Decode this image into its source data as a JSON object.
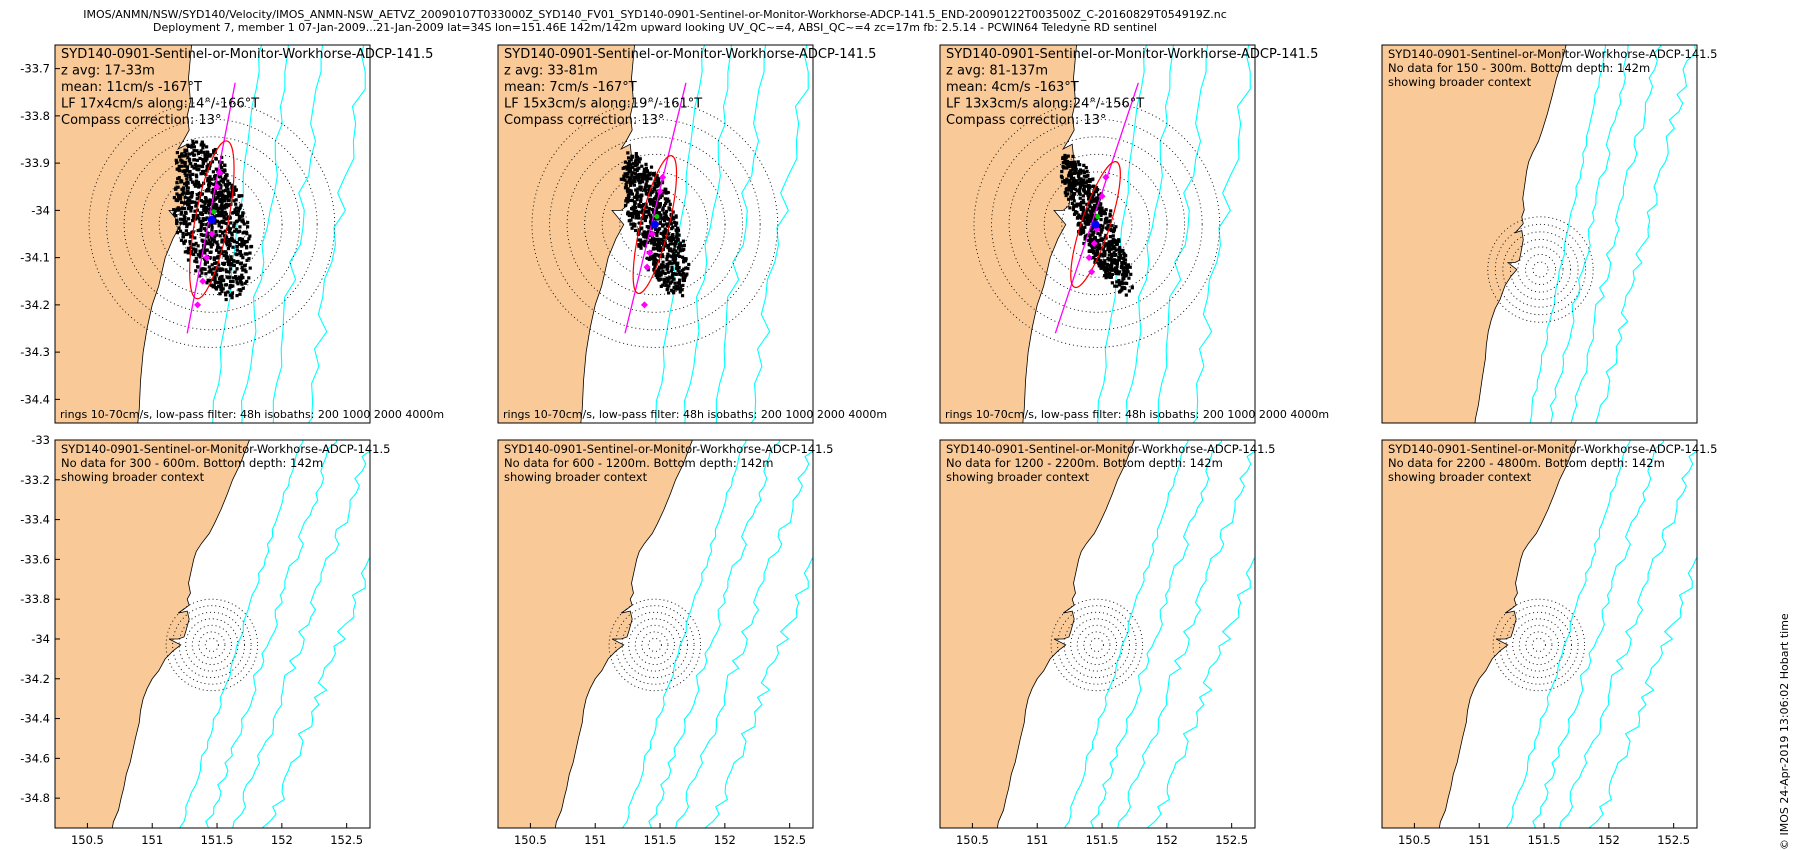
{
  "header": {
    "line1": "IMOS/ANMN/NSW/SYD140/Velocity/IMOS_ANMN-NSW_AETVZ_20090107T033000Z_SYD140_FV01_SYD140-0901-Sentinel-or-Monitor-Workhorse-ADCP-141.5_END-20090122T003500Z_C-20160829T054919Z.nc",
    "line2": "Deployment 7, member 1 07-Jan-2009...21-Jan-2009 lat=34S lon=151.46E 142m/142m upward looking UV_QC~=4, ABSI_QC~=4 zc=17m fb: 2.5.14 - PCWIN64 Teledyne RD sentinel"
  },
  "stamp": "© IMOS 24-Apr-2019 13:06:02 Hobart time",
  "colors": {
    "land": "#f9ca97",
    "isobath": "#00ffff",
    "major_axis": "#ff00ff",
    "ellipse": "#ff0000",
    "mean": "#0000ff",
    "scatter": "#000000"
  },
  "chart_data": [
    {
      "type": "scatter",
      "panel": "top-1",
      "xlim": [
        150.25,
        152.68
      ],
      "ylim": [
        -34.45,
        -33.65
      ],
      "yticks": [
        "-33.7",
        "-33.8",
        "-33.9",
        "-34",
        "-34.1",
        "-34.2",
        "-34.3",
        "-34.4"
      ],
      "xticks": [],
      "lines": [
        "SYD140-0901-Sentinel-or-Monitor-Workhorse-ADCP-141.5",
        "z avg: 17-33m",
        "mean: 11cm/s -167°T",
        "LF 17x4cm/s along:14°/-166°T",
        "Compass correction: 13°"
      ],
      "footer": "rings 10-70cm/s, low-pass filter: 48h isobaths: 200 1000 2000 4000m",
      "rings": 7,
      "scatter": {
        "cx": 151.46,
        "cy": -34.02,
        "rx": 0.26,
        "ry": 0.17,
        "tilt": -14,
        "n": 900
      },
      "major_axis": {
        "from": [
          151.27,
          -34.26
        ],
        "to": [
          151.64,
          -33.73
        ]
      },
      "ellipse_len": 0.17,
      "ellipse_wid": 0.035,
      "mean": [
        151.46,
        -34.02
      ],
      "lf_points": [
        [
          151.39,
          -34.15
        ],
        [
          151.42,
          -34.1
        ],
        [
          151.5,
          -33.95
        ],
        [
          151.52,
          -33.92
        ],
        [
          151.46,
          -34.05
        ],
        [
          151.35,
          -34.2
        ]
      ],
      "showing_context": false
    },
    {
      "type": "scatter",
      "panel": "top-2",
      "xlim": [
        150.25,
        152.68
      ],
      "ylim": [
        -34.45,
        -33.65
      ],
      "yticks": [],
      "xticks": [],
      "lines": [
        "SYD140-0901-Sentinel-or-Monitor-Workhorse-ADCP-141.5",
        "z avg: 33-81m",
        "mean: 7cm/s -167°T",
        "LF 15x3cm/s along:19°/-161°T",
        "Compass correction: 13°"
      ],
      "footer": "rings 10-70cm/s, low-pass filter: 48h isobaths: 200 1000 2000 4000m",
      "rings": 7,
      "scatter": {
        "cx": 151.46,
        "cy": -34.03,
        "rx": 0.17,
        "ry": 0.16,
        "tilt": -19,
        "n": 750
      },
      "major_axis": {
        "from": [
          151.23,
          -34.26
        ],
        "to": [
          151.7,
          -33.73
        ]
      },
      "ellipse_len": 0.15,
      "ellipse_wid": 0.03,
      "mean": [
        151.46,
        -34.03
      ],
      "lf_points": [
        [
          151.4,
          -34.12
        ],
        [
          151.42,
          -34.09
        ],
        [
          151.5,
          -33.96
        ],
        [
          151.52,
          -33.93
        ],
        [
          151.44,
          -34.05
        ],
        [
          151.38,
          -34.2
        ]
      ],
      "showing_context": false
    },
    {
      "type": "scatter",
      "panel": "top-3",
      "xlim": [
        150.25,
        152.68
      ],
      "ylim": [
        -34.45,
        -33.65
      ],
      "yticks": [],
      "xticks": [],
      "lines": [
        "SYD140-0901-Sentinel-or-Monitor-Workhorse-ADCP-141.5",
        "z avg: 81-137m",
        "mean: 4cm/s -163°T",
        "LF 13x3cm/s along:24°/-156°T",
        "Compass correction: 13°"
      ],
      "footer": "rings 10-70cm/s, low-pass filter: 48h isobaths: 200 1000 2000 4000m",
      "rings": 7,
      "scatter": {
        "cx": 151.45,
        "cy": -34.03,
        "rx": 0.13,
        "ry": 0.16,
        "tilt": -24,
        "n": 650
      },
      "major_axis": {
        "from": [
          151.14,
          -34.26
        ],
        "to": [
          151.78,
          -33.73
        ]
      },
      "ellipse_len": 0.14,
      "ellipse_wid": 0.03,
      "mean": [
        151.45,
        -34.03
      ],
      "lf_points": [
        [
          151.4,
          -34.1
        ],
        [
          151.44,
          -34.07
        ],
        [
          151.5,
          -33.97
        ],
        [
          151.53,
          -33.93
        ],
        [
          151.46,
          -34.04
        ],
        [
          151.42,
          -34.13
        ]
      ],
      "showing_context": false
    },
    {
      "type": "scatter",
      "panel": "top-4",
      "xlim": [
        149.85,
        153.05
      ],
      "ylim": [
        -34.7,
        -33.05
      ],
      "yticks": [],
      "xticks": [],
      "lines": [
        "SYD140-0901-Sentinel-or-Monitor-Workhorse-ADCP-141.5",
        "No data for 150 - 300m. Bottom depth: 142m",
        "showing broader context"
      ],
      "footer": "",
      "rings": 7,
      "showing_context": true
    },
    {
      "type": "scatter",
      "panel": "bottom-1",
      "xlim": [
        150.25,
        152.68
      ],
      "ylim": [
        -34.95,
        -33.0
      ],
      "yticks": [
        "-33",
        "-33.2",
        "-33.4",
        "-33.6",
        "-33.8",
        "-34",
        "-34.2",
        "-34.4",
        "-34.6",
        "-34.8"
      ],
      "xticks": [
        "150.5",
        "151",
        "151.5",
        "152",
        "152.5"
      ],
      "lines": [
        "SYD140-0901-Sentinel-or-Monitor-Workhorse-ADCP-141.5",
        "No data for 300 - 600m. Bottom depth: 142m",
        "showing broader context"
      ],
      "footer": "",
      "rings": 7,
      "showing_context": true
    },
    {
      "type": "scatter",
      "panel": "bottom-2",
      "xlim": [
        150.25,
        152.68
      ],
      "ylim": [
        -34.95,
        -33.0
      ],
      "yticks": [],
      "xticks": [
        "150.5",
        "151",
        "151.5",
        "152",
        "152.5"
      ],
      "lines": [
        "SYD140-0901-Sentinel-or-Monitor-Workhorse-ADCP-141.5",
        "No data for 600 - 1200m. Bottom depth: 142m",
        "showing broader context"
      ],
      "footer": "",
      "rings": 7,
      "showing_context": true
    },
    {
      "type": "scatter",
      "panel": "bottom-3",
      "xlim": [
        150.25,
        152.68
      ],
      "ylim": [
        -34.95,
        -33.0
      ],
      "yticks": [],
      "xticks": [
        "150.5",
        "151",
        "151.5",
        "152",
        "152.5"
      ],
      "lines": [
        "SYD140-0901-Sentinel-or-Monitor-Workhorse-ADCP-141.5",
        "No data for 1200 - 2200m. Bottom depth: 142m",
        "showing broader context"
      ],
      "footer": "",
      "rings": 7,
      "showing_context": true
    },
    {
      "type": "scatter",
      "panel": "bottom-4",
      "xlim": [
        150.25,
        152.68
      ],
      "ylim": [
        -34.95,
        -33.0
      ],
      "yticks": [],
      "xticks": [
        "150.5",
        "151",
        "151.5",
        "152",
        "152.5"
      ],
      "lines": [
        "SYD140-0901-Sentinel-or-Monitor-Workhorse-ADCP-141.5",
        "No data for 2200 - 4800m. Bottom depth: 142m",
        "showing broader context"
      ],
      "footer": "",
      "rings": 7,
      "showing_context": true
    }
  ]
}
